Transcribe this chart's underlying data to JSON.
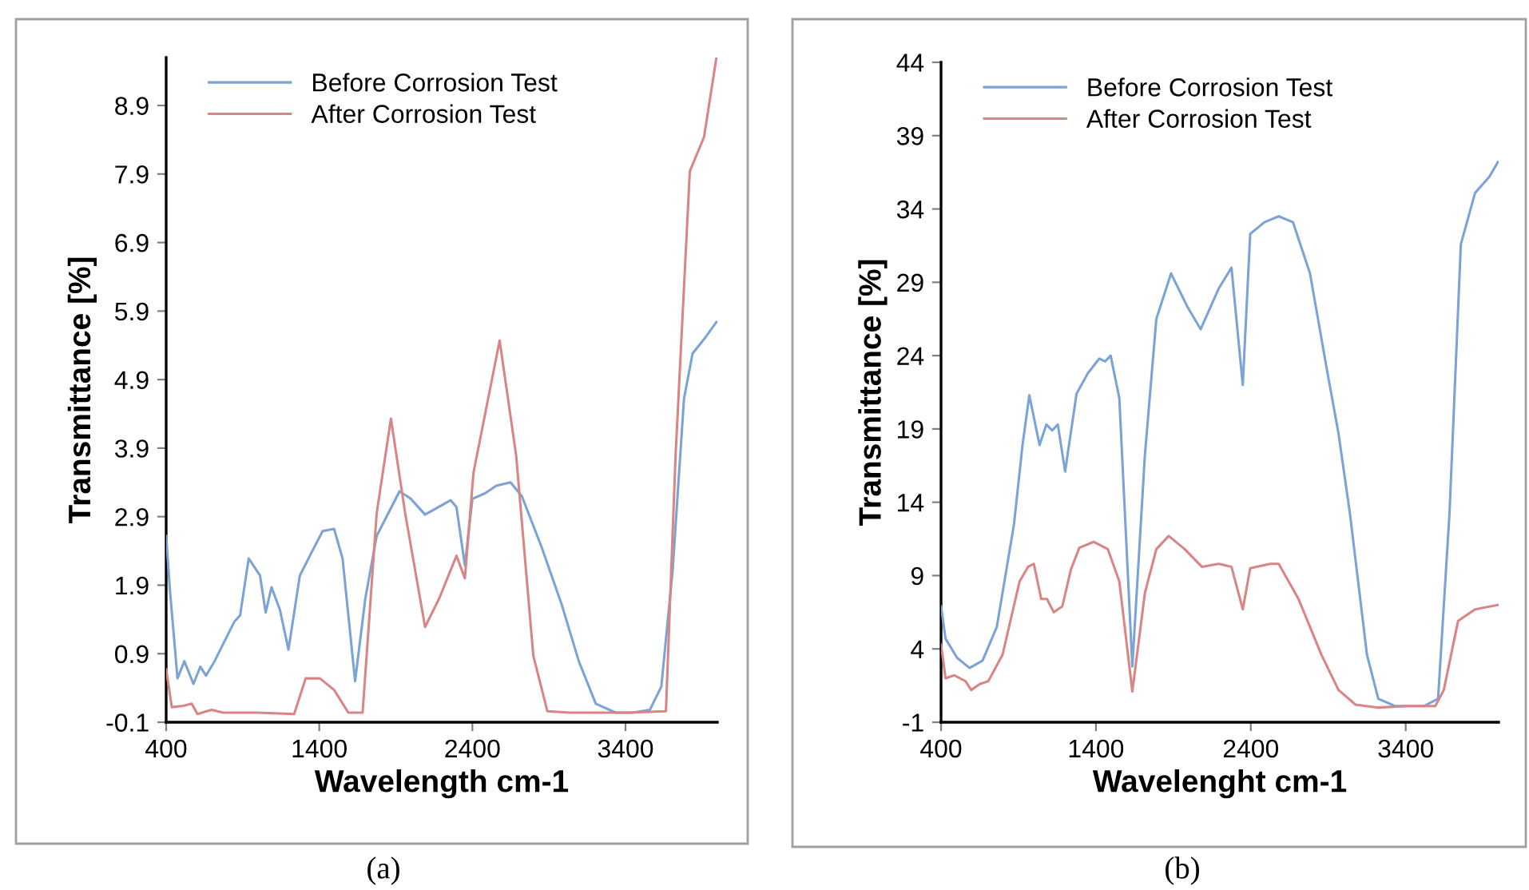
{
  "chart_data": [
    {
      "type": "line",
      "xlabel": "Wavelength cm-1",
      "ylabel": "Transmittance [%]",
      "xlim": [
        400,
        4000
      ],
      "ylim": [
        -0.1,
        9.6
      ],
      "xticks": [
        400,
        1400,
        2400,
        3400
      ],
      "yticks": [
        -0.1,
        0.9,
        1.9,
        2.9,
        3.9,
        4.9,
        5.9,
        6.9,
        7.9,
        8.9
      ],
      "legend": "top left",
      "annotations": [
        "(a)"
      ],
      "series": [
        {
          "name": "Before Corrosion Test",
          "color": "#7ba3d6",
          "x": [
            400,
            426,
            474,
            519,
            578,
            623,
            660,
            716,
            846,
            883,
            939,
            1013,
            1050,
            1088,
            1143,
            1199,
            1273,
            1348,
            1422,
            1497,
            1552,
            1634,
            1701,
            1775,
            1924,
            1998,
            2091,
            2258,
            2296,
            2351,
            2400,
            2482,
            2556,
            2649,
            2723,
            2853,
            2983,
            3095,
            3206,
            3336,
            3448,
            3559,
            3634,
            3708,
            3782,
            3838,
            3913,
            3994
          ],
          "values": [
            2.62,
            1.79,
            0.54,
            0.79,
            0.46,
            0.71,
            0.58,
            0.79,
            1.37,
            1.46,
            2.29,
            2.04,
            1.5,
            1.87,
            1.54,
            0.96,
            2.04,
            2.37,
            2.69,
            2.72,
            2.29,
            0.5,
            1.71,
            2.62,
            3.27,
            3.16,
            2.93,
            3.14,
            3.04,
            2.19,
            3.16,
            3.24,
            3.35,
            3.4,
            3.2,
            2.45,
            1.62,
            0.79,
            0.17,
            0.04,
            0.04,
            0.08,
            0.42,
            2.12,
            4.62,
            5.28,
            5.49,
            5.74
          ]
        },
        {
          "name": "After Corrosion Test",
          "color": "#d98585",
          "x": [
            400,
            437,
            512,
            567,
            604,
            697,
            772,
            995,
            1236,
            1311,
            1404,
            1497,
            1590,
            1683,
            1775,
            1868,
            1961,
            2091,
            2184,
            2296,
            2351,
            2407,
            2578,
            2686,
            2798,
            2890,
            3039,
            3411,
            3664,
            3727,
            3820,
            3913,
            3994
          ],
          "values": [
            0.67,
            0.12,
            0.14,
            0.17,
            0.02,
            0.08,
            0.04,
            0.04,
            0.02,
            0.54,
            0.54,
            0.37,
            0.04,
            0.04,
            2.95,
            4.33,
            2.95,
            1.29,
            1.71,
            2.33,
            2.0,
            3.54,
            5.47,
            3.79,
            0.87,
            0.06,
            0.04,
            0.04,
            0.06,
            3.79,
            7.94,
            8.44,
            9.6
          ]
        }
      ]
    },
    {
      "type": "line",
      "xlabel": "Wavelenght cm-1",
      "ylabel": "Transmittance [%]",
      "xlim": [
        400,
        4000
      ],
      "ylim": [
        -1,
        44
      ],
      "xticks": [
        400,
        1400,
        2400,
        3400
      ],
      "yticks": [
        -1,
        4,
        9,
        14,
        19,
        24,
        29,
        34,
        39,
        44
      ],
      "legend": "top left",
      "annotations": [
        "(b)"
      ],
      "series": [
        {
          "name": "Before Corrosion Test",
          "color": "#7ba3d6",
          "x": [
            400,
            429,
            503,
            584,
            668,
            760,
            871,
            926,
            970,
            1036,
            1080,
            1117,
            1154,
            1201,
            1275,
            1348,
            1422,
            1459,
            1495,
            1551,
            1635,
            1716,
            1790,
            1885,
            1992,
            2076,
            2194,
            2275,
            2348,
            2396,
            2488,
            2580,
            2672,
            2782,
            2892,
            2966,
            3039,
            3150,
            3223,
            3333,
            3517,
            3609,
            3683,
            3756,
            3848,
            3940,
            3995
          ],
          "values": [
            6.9,
            4.7,
            3.4,
            2.7,
            3.2,
            5.5,
            12.5,
            17.9,
            21.3,
            17.9,
            19.3,
            18.9,
            19.3,
            16.1,
            21.4,
            22.8,
            23.8,
            23.6,
            24.0,
            21.1,
            2.8,
            17.2,
            26.5,
            29.6,
            27.3,
            25.8,
            28.6,
            30.0,
            22.0,
            32.3,
            33.1,
            33.5,
            33.1,
            29.6,
            23.0,
            18.7,
            13.3,
            3.6,
            0.6,
            0.1,
            0.1,
            0.6,
            13.3,
            31.6,
            35.1,
            36.2,
            37.2
          ]
        },
        {
          "name": "After Corrosion Test",
          "color": "#d98585",
          "x": [
            400,
            429,
            485,
            558,
            595,
            650,
            705,
            797,
            907,
            962,
            999,
            1047,
            1084,
            1128,
            1183,
            1238,
            1293,
            1385,
            1477,
            1551,
            1635,
            1716,
            1790,
            1870,
            1973,
            2084,
            2194,
            2275,
            2348,
            2396,
            2525,
            2580,
            2708,
            2856,
            2966,
            3076,
            3223,
            3407,
            3591,
            3646,
            3738,
            3848,
            3995
          ],
          "values": [
            4.3,
            2.0,
            2.2,
            1.8,
            1.2,
            1.6,
            1.8,
            3.6,
            8.6,
            9.6,
            9.8,
            7.4,
            7.4,
            6.5,
            6.9,
            9.4,
            10.9,
            11.3,
            10.8,
            8.6,
            1.1,
            7.8,
            10.8,
            11.7,
            10.8,
            9.6,
            9.8,
            9.6,
            6.7,
            9.5,
            9.8,
            9.8,
            7.4,
            3.6,
            1.2,
            0.2,
            0.0,
            0.1,
            0.1,
            1.2,
            5.9,
            6.7,
            7.0
          ]
        }
      ]
    }
  ]
}
